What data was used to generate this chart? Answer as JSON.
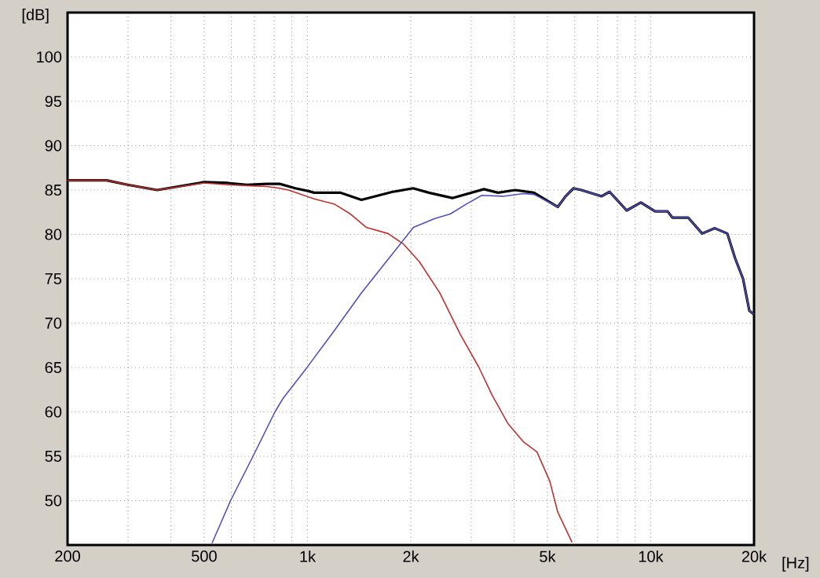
{
  "chart_data": {
    "type": "line",
    "xlabel": "[Hz]",
    "ylabel": "[dB]",
    "log": "x",
    "grid": true,
    "marker": "none",
    "line_style": "solid",
    "xlim": [
      200,
      20000
    ],
    "ylim": [
      45,
      105
    ],
    "xticks": [
      {
        "value": 200,
        "label": "200"
      },
      {
        "value": 300,
        "label": null
      },
      {
        "value": 400,
        "label": null
      },
      {
        "value": 500,
        "label": "500"
      },
      {
        "value": 600,
        "label": null
      },
      {
        "value": 700,
        "label": null
      },
      {
        "value": 800,
        "label": null
      },
      {
        "value": 900,
        "label": null
      },
      {
        "value": 1000,
        "label": "1k"
      },
      {
        "value": 2000,
        "label": "2k"
      },
      {
        "value": 3000,
        "label": null
      },
      {
        "value": 4000,
        "label": null
      },
      {
        "value": 5000,
        "label": "5k"
      },
      {
        "value": 6000,
        "label": null
      },
      {
        "value": 7000,
        "label": null
      },
      {
        "value": 8000,
        "label": null
      },
      {
        "value": 9000,
        "label": null
      },
      {
        "value": 10000,
        "label": "10k"
      },
      {
        "value": 20000,
        "label": "20k"
      }
    ],
    "yticks": [
      50,
      55,
      60,
      65,
      70,
      75,
      80,
      85,
      90,
      95,
      100
    ],
    "series": [
      {
        "color": "#000000",
        "x": [
          200,
          260,
          299,
          365,
          500,
          586,
          665,
          762,
          830,
          922,
          1002,
          1046,
          1250,
          1436,
          1770,
          2032,
          2258,
          2642,
          3266,
          3590,
          4028,
          4570,
          5248,
          5360,
          5650,
          5960,
          6280,
          7190,
          7590,
          8510,
          9360,
          10300,
          11200,
          11560,
          12850,
          14120,
          15380,
          16720,
          17620,
          18580,
          19380,
          20000
        ],
        "values": [
          86.1,
          86.1,
          85.6,
          85.0,
          85.9,
          85.8,
          85.6,
          85.7,
          85.7,
          85.2,
          84.9,
          84.7,
          84.7,
          83.9,
          84.8,
          85.2,
          84.7,
          84.1,
          85.1,
          84.7,
          85.0,
          84.7,
          83.3,
          83.1,
          84.3,
          85.2,
          85.0,
          84.3,
          84.8,
          82.7,
          83.6,
          82.6,
          82.6,
          81.9,
          81.9,
          80.1,
          80.7,
          80.1,
          77.3,
          75.0,
          71.4,
          71.0
        ]
      },
      {
        "color": "#c03030",
        "x": [
          200,
          260,
          299,
          365,
          500,
          586,
          665,
          762,
          830,
          880,
          1046,
          1200,
          1334,
          1482,
          1716,
          1906,
          2120,
          2430,
          2790,
          3160,
          3450,
          3835,
          4265,
          4660,
          5080,
          5360,
          5900
        ],
        "values": [
          86.1,
          86.1,
          85.6,
          85.0,
          85.8,
          85.6,
          85.5,
          85.4,
          85.2,
          85.0,
          84.0,
          83.4,
          82.3,
          80.8,
          80.1,
          78.9,
          76.9,
          73.4,
          68.7,
          65.0,
          61.9,
          58.7,
          56.6,
          55.5,
          52.2,
          48.7,
          45.3
        ]
      },
      {
        "color": "#5050c0",
        "x": [
          527,
          597,
          698,
          804,
          848,
          992,
          1204,
          1436,
          1710,
          2036,
          2350,
          2606,
          2896,
          3220,
          3708,
          4265,
          4570,
          5248,
          5360,
          5650,
          5960,
          6280,
          7190,
          7590,
          8510,
          9360,
          10300,
          11200,
          11560,
          12850,
          14120,
          15380,
          16720,
          17620,
          18580,
          19380,
          20000
        ],
        "values": [
          45.2,
          50.0,
          55.2,
          60.0,
          61.5,
          64.9,
          69.3,
          73.4,
          77.1,
          80.8,
          81.8,
          82.3,
          83.4,
          84.4,
          84.3,
          84.6,
          84.5,
          83.3,
          83.1,
          84.3,
          85.2,
          85.0,
          84.3,
          84.8,
          82.7,
          83.6,
          82.6,
          82.6,
          81.9,
          81.9,
          80.1,
          80.7,
          80.1,
          77.3,
          75.0,
          71.4,
          71.0
        ]
      }
    ]
  }
}
